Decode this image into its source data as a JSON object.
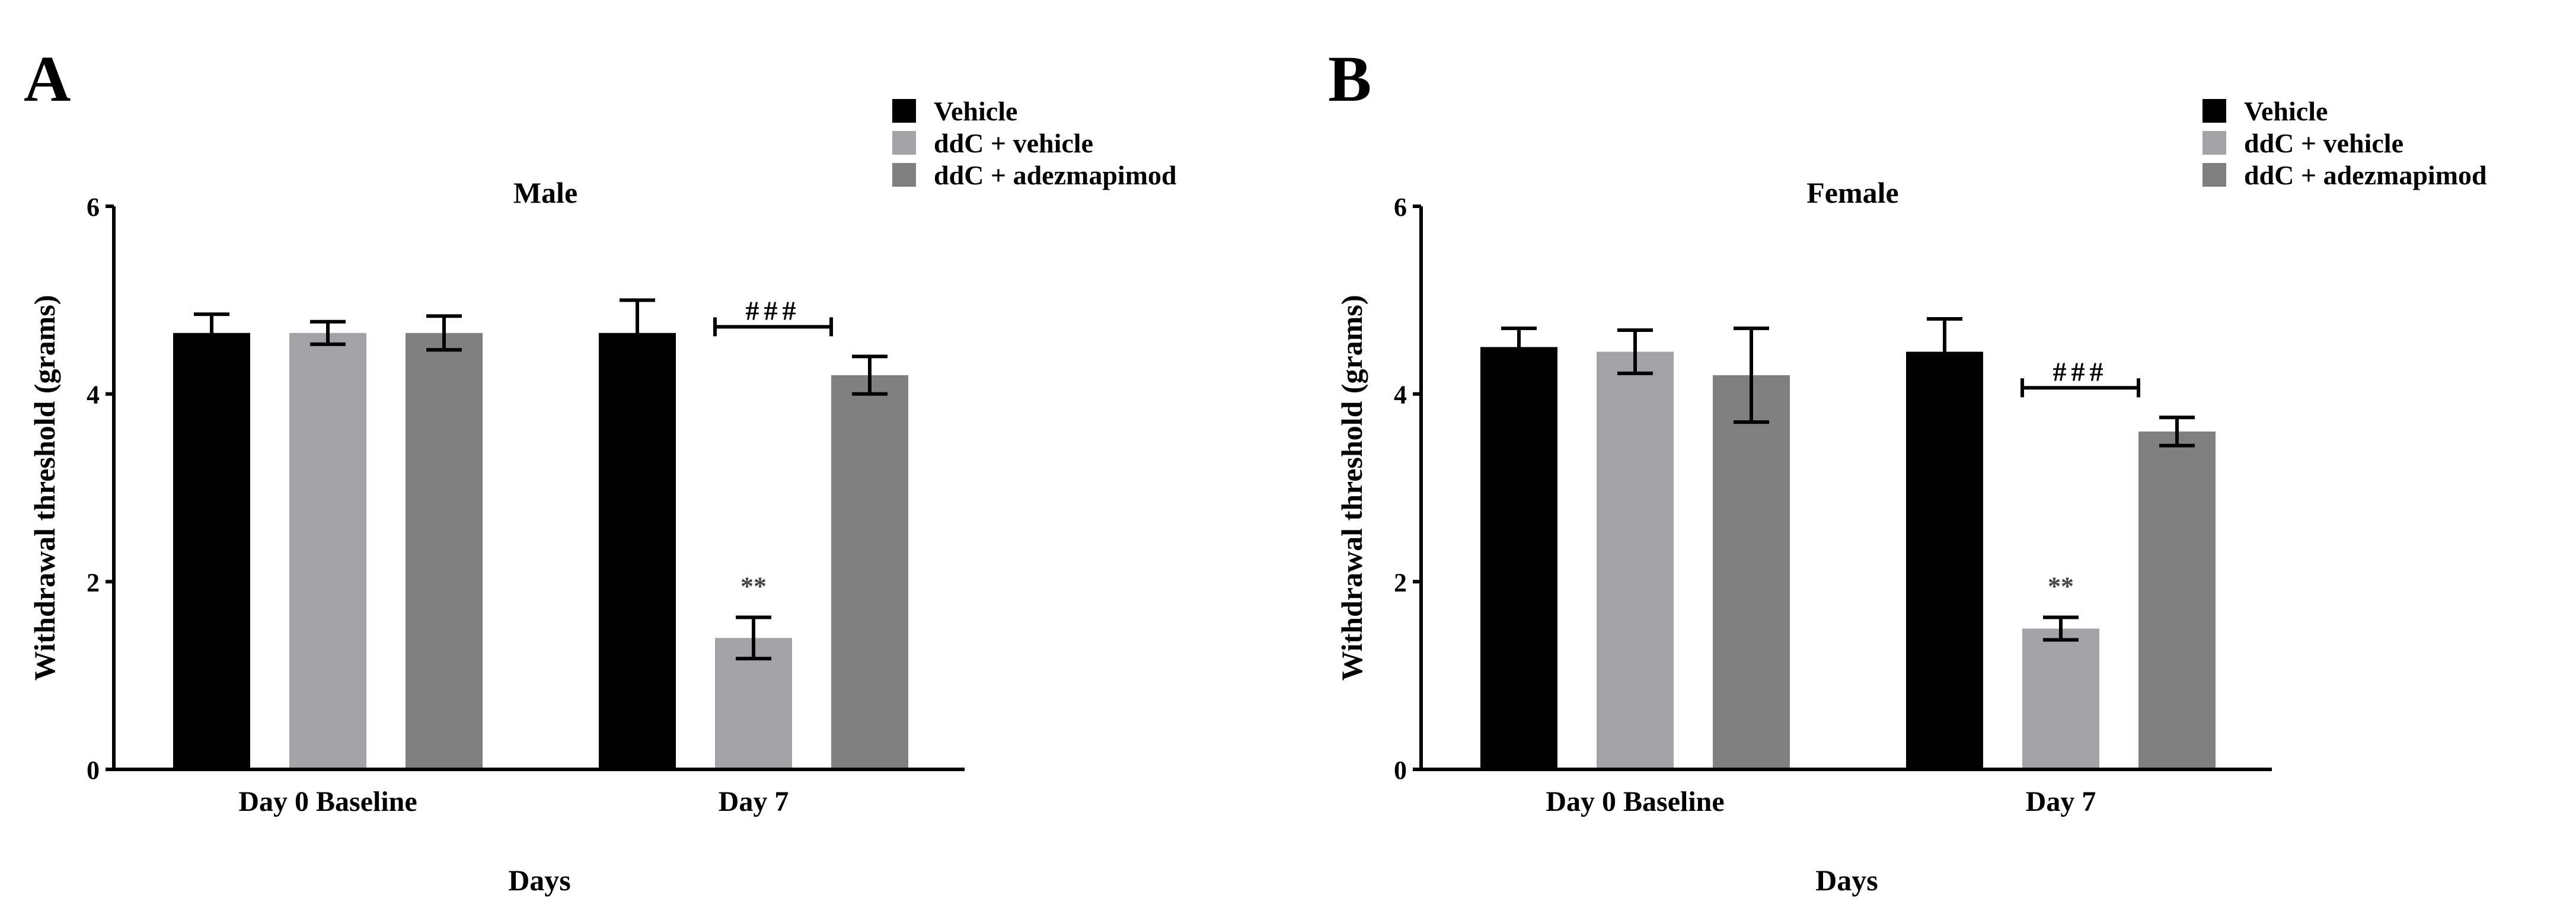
{
  "colors": {
    "vehicle": "#000000",
    "ddc_vehicle": "#a3a3a7",
    "ddc_adezmapimod": "#808080",
    "axis": "#000000",
    "annotation": "#444444"
  },
  "chart_data": [
    {
      "panel": "A",
      "type": "bar",
      "title": "Male",
      "xlabel": "Days",
      "ylabel": "Withdrawal threshold (grams)",
      "ylim": [
        0,
        6
      ],
      "yticks": [
        "0",
        "2",
        "4",
        "6"
      ],
      "categories": [
        "Day 0 Baseline",
        "Day 7"
      ],
      "legend": [
        "Vehicle",
        "ddC + vehicle",
        "ddC + adezmapimod"
      ],
      "legend_position": "top-right",
      "series": [
        {
          "name": "Vehicle",
          "values": [
            4.65,
            4.65
          ],
          "errors": [
            0.2,
            0.35
          ]
        },
        {
          "name": "ddC + vehicle",
          "values": [
            4.65,
            1.4
          ],
          "errors": [
            0.12,
            0.22
          ]
        },
        {
          "name": "ddC + adezmapimod",
          "values": [
            4.65,
            4.2
          ],
          "errors": [
            0.18,
            0.2
          ]
        }
      ],
      "annotations": {
        "significance": "**",
        "bracket_label": "###"
      }
    },
    {
      "panel": "B",
      "type": "bar",
      "title": "Female",
      "xlabel": "Days",
      "ylabel": "Withdrawal threshold (grams)",
      "ylim": [
        0,
        6
      ],
      "yticks": [
        "0",
        "2",
        "4",
        "6"
      ],
      "categories": [
        "Day 0 Baseline",
        "Day 7"
      ],
      "legend": [
        "Vehicle",
        "ddC + vehicle",
        "ddC + adezmapimod"
      ],
      "legend_position": "top-right",
      "series": [
        {
          "name": "Vehicle",
          "values": [
            4.5,
            4.45
          ],
          "errors": [
            0.2,
            0.35
          ]
        },
        {
          "name": "ddC + vehicle",
          "values": [
            4.45,
            1.5
          ],
          "errors": [
            0.23,
            0.12
          ]
        },
        {
          "name": "ddC + adezmapimod",
          "values": [
            4.2,
            3.6
          ],
          "errors": [
            0.5,
            0.15
          ]
        }
      ],
      "annotations": {
        "significance": "**",
        "bracket_label": "###"
      }
    }
  ]
}
